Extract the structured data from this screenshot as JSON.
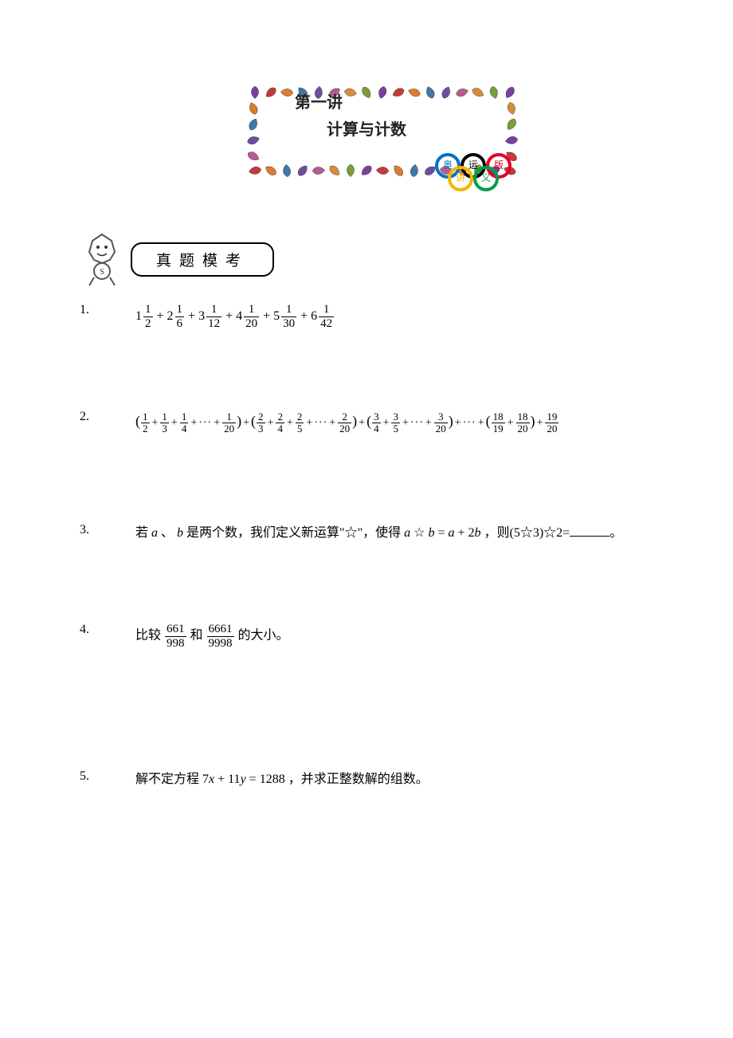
{
  "banner": {
    "title": "第一讲",
    "subtitle": "计算与计数",
    "rings": {
      "text": [
        "奥",
        "运",
        "版",
        "讲",
        "义"
      ],
      "colors": [
        "#0072c6",
        "#000000",
        "#e4002b",
        "#f7b500",
        "#009e49"
      ]
    },
    "leaf_colors": [
      "#7b3fa0",
      "#c43a3a",
      "#e07a2f",
      "#4178a6",
      "#6a4fa0",
      "#b85c8e",
      "#d88c3a",
      "#7a9e3c"
    ]
  },
  "section": {
    "label": "真题模考"
  },
  "problems": [
    {
      "n": "1.",
      "kind": "mixed_sum",
      "terms": [
        {
          "w": "1",
          "num": "1",
          "den": "2"
        },
        {
          "w": "2",
          "num": "1",
          "den": "6"
        },
        {
          "w": "3",
          "num": "1",
          "den": "12"
        },
        {
          "w": "4",
          "num": "1",
          "den": "20"
        },
        {
          "w": "5",
          "num": "1",
          "den": "30"
        },
        {
          "w": "6",
          "num": "1",
          "den": "42"
        }
      ]
    },
    {
      "n": "2.",
      "kind": "grouped_frac_sum",
      "groups": [
        {
          "num": "1",
          "dens": [
            "2",
            "3",
            "4"
          ],
          "last_den": "20"
        },
        {
          "num": "2",
          "dens": [
            "3",
            "4",
            "5"
          ],
          "last_den": "20"
        },
        {
          "num": "3",
          "dens": [
            "4",
            "5"
          ],
          "last_den": "20"
        }
      ],
      "tail_group": {
        "nums": [
          "18",
          "18"
        ],
        "dens": [
          "19",
          "20"
        ]
      },
      "final": {
        "num": "19",
        "den": "20"
      }
    },
    {
      "n": "3.",
      "kind": "text",
      "pre": "若",
      "a": "a",
      "sep": "、",
      "b": "b",
      "mid1": "是两个数，我们定义新运算\"☆\"，使得",
      "expr": "a ☆ b = a + 2b",
      "mid2": "，则(5☆3)☆2=",
      "post": "。"
    },
    {
      "n": "4.",
      "kind": "compare",
      "pre": "比较",
      "f1": {
        "num": "661",
        "den": "998"
      },
      "mid": "和",
      "f2": {
        "num": "6661",
        "den": "9998"
      },
      "post": "的大小。"
    },
    {
      "n": "5.",
      "kind": "equation",
      "pre": "解不定方程",
      "eq_lhs": "7x + 11y",
      "eq_rhs": "1288",
      "post": "，并求正整数解的组数。"
    }
  ],
  "colors": {
    "text": "#000000",
    "bg": "#ffffff"
  }
}
